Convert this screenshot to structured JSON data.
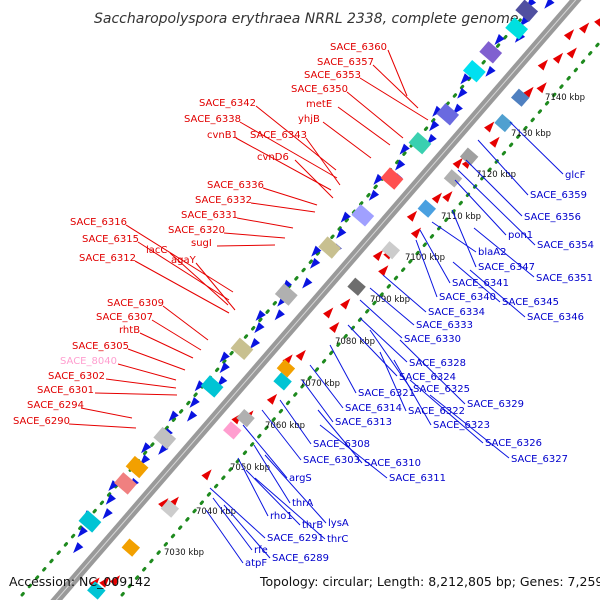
{
  "title": "Saccharopolyspora erythraea NRRL 2338, complete genome",
  "footer": {
    "accession": "Accession: NC_009142",
    "topology": "Topology: circular; Length: 8,212,805 bp; Genes: 7,259"
  },
  "colors": {
    "left_labels": "#e00000",
    "highlight_label": "#ff9ecf",
    "right_labels": "#0000cc",
    "forward_genes": "#e60000",
    "reverse_genes": "#0a14e0",
    "backbone": "#9a9a9a",
    "guide_dots": "#1e8a1e"
  },
  "ticks": [
    "7030 kbp",
    "7040 kbp",
    "7050 kbp",
    "7060 kbp",
    "7070 kbp",
    "7080 kbp",
    "7090 kbp",
    "7100 kbp",
    "7110 kbp",
    "7120 kbp",
    "7130 kbp",
    "7140 kbp"
  ],
  "left_labels": [
    "SACE_6360",
    "SACE_6357",
    "SACE_6353",
    "SACE_6350",
    "metE",
    "yhjB",
    "SACE_6342",
    "SACE_6338",
    "SACE_6343",
    "cvnB1",
    "cvnD6",
    "SACE_6336",
    "SACE_6332",
    "SACE_6331",
    "SACE_6320",
    "sugI",
    "SACE_6316",
    "SACE_6315",
    "lacC",
    "agaY",
    "SACE_6312",
    "SACE_6309",
    "SACE_6307",
    "rhtB",
    "SACE_6305",
    "SACE_8040",
    "SACE_6302",
    "SACE_6301",
    "SACE_6294",
    "SACE_6290"
  ],
  "right_labels": [
    "glcF",
    "SACE_6359",
    "SACE_6356",
    "pon1",
    "SACE_6354",
    "blaA2",
    "SACE_6347",
    "SACE_6351",
    "SACE_6341",
    "SACE_6340",
    "SACE_6345",
    "SACE_6346",
    "SACE_6334",
    "SACE_6333",
    "SACE_6330",
    "SACE_6328",
    "SACE_6324",
    "SACE_6325",
    "SACE_6329",
    "SACE_6321",
    "SACE_6314",
    "SACE_6322",
    "SACE_6313",
    "SACE_6323",
    "SACE_6326",
    "SACE_6308",
    "SACE_6327",
    "SACE_6303",
    "SACE_6310",
    "argS",
    "SACE_6311",
    "thrA",
    "rho1",
    "lysA",
    "thrB",
    "thrC",
    "SACE_6291",
    "rfe",
    "SACE_6289",
    "atpF"
  ]
}
